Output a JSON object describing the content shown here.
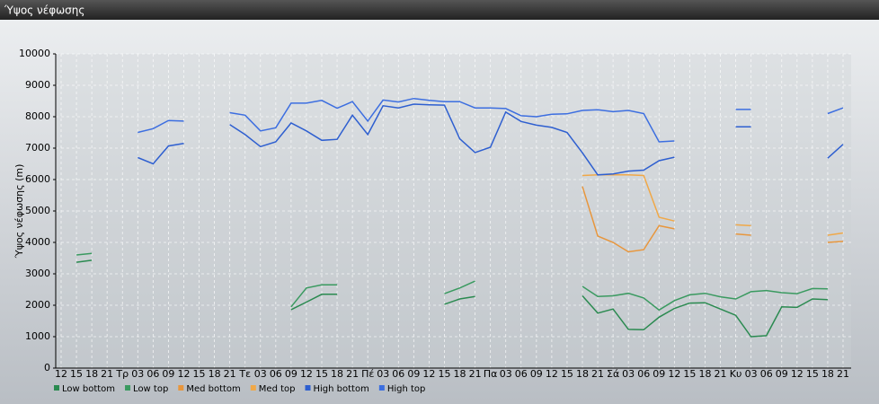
{
  "chart_data": {
    "type": "line",
    "title": "Ύψος νέφωσης",
    "y_label": "Ύψος νέφωσης (m)",
    "categories": [
      "12",
      "15",
      "18",
      "21",
      "Τρ",
      "03",
      "06",
      "09",
      "12",
      "15",
      "18",
      "21",
      "Τε",
      "03",
      "06",
      "09",
      "12",
      "15",
      "18",
      "21",
      "Πέ",
      "03",
      "06",
      "09",
      "12",
      "15",
      "18",
      "21",
      "Πα",
      "03",
      "06",
      "09",
      "12",
      "15",
      "18",
      "21",
      "Σά",
      "03",
      "06",
      "09",
      "12",
      "15",
      "18",
      "21",
      "Κυ",
      "03",
      "06",
      "09",
      "12",
      "15",
      "18",
      "21"
    ],
    "ylim": [
      0,
      10000
    ],
    "yticks": [
      0,
      1000,
      2000,
      3000,
      4000,
      5000,
      6000,
      7000,
      8000,
      9000,
      10000
    ],
    "grid": true,
    "series": [
      {
        "name": "Low bottom",
        "color": "#2a8a50",
        "values": [
          null,
          3370,
          3430,
          null,
          null,
          null,
          null,
          null,
          null,
          null,
          null,
          null,
          null,
          null,
          null,
          1860,
          2100,
          2350,
          2350,
          null,
          null,
          null,
          null,
          null,
          null,
          2030,
          2200,
          2280,
          null,
          null,
          null,
          null,
          null,
          null,
          2300,
          1750,
          1880,
          1230,
          1220,
          1620,
          1900,
          2070,
          2080,
          1880,
          1680,
          1000,
          1030,
          1950,
          1930,
          2200,
          2180,
          null
        ]
      },
      {
        "name": "Low top",
        "color": "#3a9a60",
        "values": [
          null,
          3600,
          3650,
          null,
          null,
          null,
          null,
          null,
          null,
          null,
          null,
          null,
          null,
          null,
          null,
          1950,
          2550,
          2650,
          2650,
          null,
          null,
          null,
          null,
          null,
          null,
          2370,
          2550,
          2770,
          null,
          null,
          null,
          null,
          null,
          null,
          2600,
          2280,
          2300,
          2380,
          2230,
          1850,
          2150,
          2330,
          2380,
          2270,
          2200,
          2430,
          2470,
          2400,
          2370,
          2530,
          2520,
          null
        ]
      },
      {
        "name": "Med bottom",
        "color": "#e8963c",
        "values": [
          null,
          null,
          null,
          null,
          null,
          null,
          null,
          null,
          null,
          null,
          null,
          null,
          null,
          null,
          null,
          null,
          null,
          null,
          null,
          null,
          null,
          null,
          null,
          null,
          null,
          null,
          null,
          null,
          null,
          null,
          null,
          null,
          null,
          null,
          5780,
          4200,
          4000,
          3700,
          3770,
          4530,
          4430,
          null,
          null,
          null,
          4270,
          4230,
          null,
          null,
          null,
          null,
          4000,
          4030
        ]
      },
      {
        "name": "Med top",
        "color": "#f0a848",
        "values": [
          null,
          null,
          null,
          null,
          null,
          null,
          null,
          null,
          null,
          null,
          null,
          null,
          null,
          null,
          null,
          null,
          null,
          null,
          null,
          null,
          null,
          null,
          null,
          null,
          null,
          null,
          null,
          null,
          null,
          null,
          null,
          null,
          null,
          null,
          6130,
          6150,
          6150,
          6150,
          6130,
          4800,
          4680,
          null,
          null,
          null,
          4560,
          4530,
          null,
          null,
          null,
          null,
          4230,
          4300
        ]
      },
      {
        "name": "High bottom",
        "color": "#2e5fd0",
        "values": [
          null,
          null,
          null,
          null,
          null,
          6700,
          6500,
          7070,
          7150,
          null,
          null,
          7750,
          7430,
          7050,
          7200,
          7800,
          7550,
          7250,
          7280,
          8050,
          7430,
          8350,
          8280,
          8400,
          8380,
          8370,
          7300,
          6860,
          7030,
          8150,
          7850,
          7730,
          7660,
          7500,
          6850,
          6150,
          6180,
          6270,
          6300,
          6600,
          6710,
          null,
          null,
          null,
          7680,
          7680,
          null,
          null,
          null,
          null,
          6680,
          7120
        ]
      },
      {
        "name": "High top",
        "color": "#3c6ee0",
        "values": [
          null,
          null,
          null,
          null,
          null,
          7500,
          7620,
          7880,
          7860,
          null,
          null,
          8130,
          8050,
          7550,
          7650,
          8430,
          8430,
          8520,
          8270,
          8480,
          7860,
          8530,
          8470,
          8580,
          8520,
          8480,
          8480,
          8280,
          8280,
          8260,
          8030,
          8000,
          8080,
          8090,
          8200,
          8220,
          8160,
          8200,
          8100,
          7200,
          7230,
          null,
          null,
          null,
          8230,
          8230,
          null,
          null,
          null,
          null,
          8100,
          8280
        ]
      }
    ]
  }
}
